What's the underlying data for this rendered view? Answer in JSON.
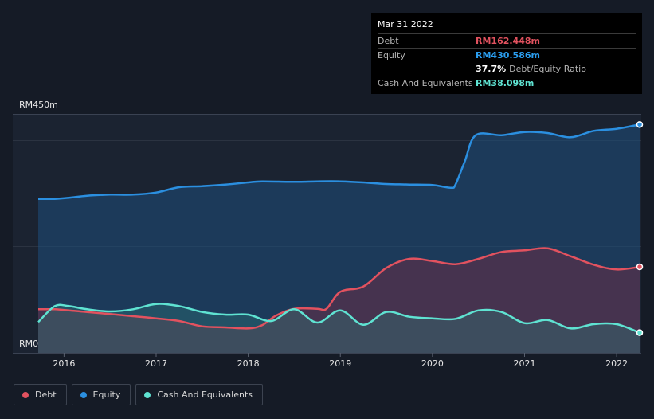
{
  "tooltip": {
    "date": "Mar 31 2022",
    "rows": [
      {
        "label": "Debt",
        "value": "RM162.448m"
      },
      {
        "label": "Equity",
        "value": "RM430.586m"
      },
      {
        "label": "Cash And Equivalents",
        "value": "RM38.098m"
      }
    ],
    "ratio_value": "37.7%",
    "ratio_label": "Debt/Equity Ratio"
  },
  "legend": [
    {
      "label": "Debt",
      "color": "#e2525f"
    },
    {
      "label": "Equity",
      "color": "#2b8fe0"
    },
    {
      "label": "Cash And Equivalents",
      "color": "#5fe3d2"
    }
  ],
  "colors": {
    "debt": "#e2525f",
    "equity": "#2b8fe0",
    "cash": "#5fe3d2",
    "debt_tt": "#e2525f",
    "equity_tt": "#2b9ef0",
    "cash_tt": "#5fe3d2"
  },
  "chart_data": {
    "type": "area",
    "title": "",
    "ylabel_top": "RM450m",
    "ylabel_bottom": "RM0",
    "ylim": [
      0,
      450
    ],
    "xlim": [
      2015.72,
      2022.25
    ],
    "x_ticks": [
      {
        "label": "2016",
        "value": 2016.0
      },
      {
        "label": "2017",
        "value": 2017.0
      },
      {
        "label": "2018",
        "value": 2018.0
      },
      {
        "label": "2019",
        "value": 2019.0
      },
      {
        "label": "2020",
        "value": 2020.0
      },
      {
        "label": "2021",
        "value": 2021.0
      },
      {
        "label": "2022",
        "value": 2022.0
      }
    ],
    "series": [
      {
        "name": "Equity",
        "key": "equity",
        "x": [
          2015.72,
          2015.9,
          2016.05,
          2016.25,
          2016.5,
          2016.75,
          2017.0,
          2017.25,
          2017.5,
          2017.75,
          2018.0,
          2018.15,
          2018.5,
          2018.75,
          2019.0,
          2019.25,
          2019.5,
          2019.75,
          2020.0,
          2020.2,
          2020.25,
          2020.35,
          2020.47,
          2020.75,
          2021.0,
          2021.25,
          2021.5,
          2021.75,
          2022.0,
          2022.25
        ],
        "values": [
          290,
          290,
          292,
          296,
          298,
          298,
          302,
          312,
          314,
          317,
          321,
          323,
          322,
          323,
          323,
          321,
          318,
          317,
          316,
          311,
          317,
          360,
          410,
          410,
          416,
          414,
          406,
          418,
          422,
          430
        ]
      },
      {
        "name": "Debt",
        "key": "debt",
        "x": [
          2015.72,
          2015.9,
          2016.05,
          2016.25,
          2016.5,
          2016.75,
          2017.0,
          2017.25,
          2017.5,
          2017.75,
          2018.0,
          2018.15,
          2018.3,
          2018.5,
          2018.75,
          2018.85,
          2019.0,
          2019.25,
          2019.5,
          2019.75,
          2020.0,
          2020.25,
          2020.5,
          2020.75,
          2021.0,
          2021.25,
          2021.5,
          2021.75,
          2022.0,
          2022.25
        ],
        "values": [
          82,
          82,
          80,
          77,
          73,
          69,
          65,
          60,
          50,
          48,
          46,
          52,
          70,
          83,
          83,
          83,
          115,
          125,
          160,
          177,
          173,
          167,
          177,
          190,
          193,
          197,
          182,
          166,
          157,
          162
        ]
      },
      {
        "name": "Cash And Equivalents",
        "key": "cash",
        "x": [
          2015.72,
          2015.9,
          2016.05,
          2016.25,
          2016.5,
          2016.75,
          2017.0,
          2017.25,
          2017.5,
          2017.75,
          2018.0,
          2018.25,
          2018.5,
          2018.75,
          2019.0,
          2019.25,
          2019.5,
          2019.75,
          2020.0,
          2020.25,
          2020.5,
          2020.75,
          2021.0,
          2021.25,
          2021.5,
          2021.75,
          2022.0,
          2022.25
        ],
        "values": [
          58,
          88,
          88,
          82,
          78,
          82,
          92,
          88,
          77,
          72,
          72,
          60,
          82,
          57,
          80,
          53,
          77,
          68,
          65,
          64,
          80,
          77,
          56,
          62,
          46,
          54,
          54,
          38
        ]
      }
    ]
  }
}
